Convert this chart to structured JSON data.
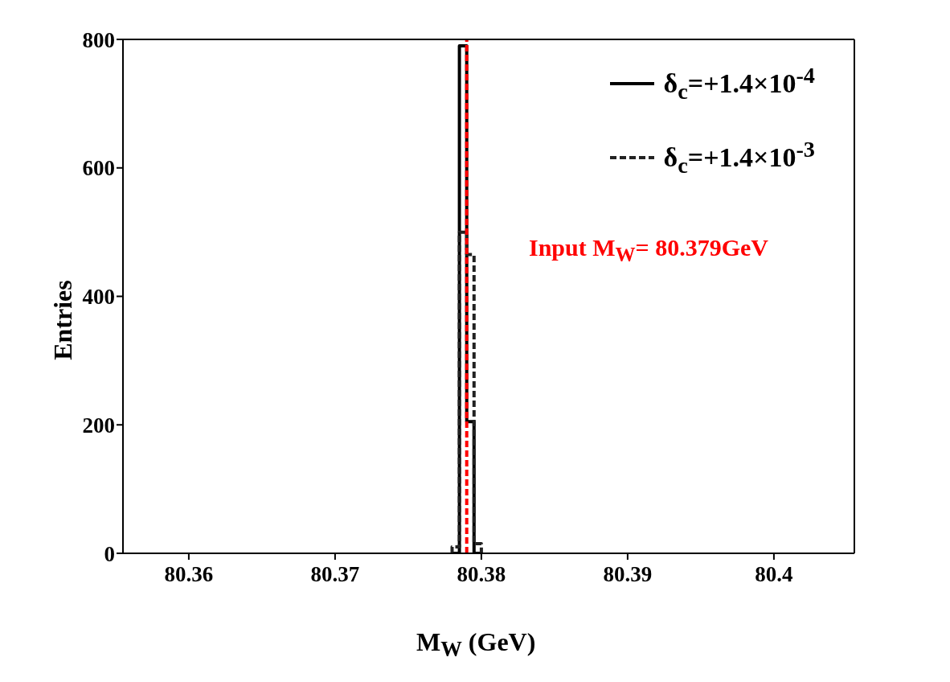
{
  "chart_data": {
    "type": "histogram",
    "xlabel": "M$_{W}$ (GeV)",
    "ylabel": "Entries",
    "xlim": [
      80.3555,
      80.4055
    ],
    "xticks": [
      80.36,
      80.37,
      80.38,
      80.39,
      80.4
    ],
    "ylim": [
      0,
      800
    ],
    "yticks": [
      0,
      200,
      400,
      600,
      800
    ],
    "bins": [
      80.378,
      80.3785,
      80.379,
      80.3795,
      80.38
    ],
    "series": [
      {
        "name": "δ$_{c}$=+1.4×10$^{-4}$",
        "color": "#000000",
        "line_style": "solid",
        "values": [
          0,
          790,
          205,
          0
        ]
      },
      {
        "name": "δ$_{c}$=+1.4×10$^{-3}$",
        "color": "#222222",
        "line_style": "dotted",
        "values": [
          10,
          500,
          465,
          15
        ]
      }
    ],
    "ref_lines": [
      {
        "axis": "x",
        "value": 80.379,
        "color": "#ff0000",
        "line_style": "dotted"
      }
    ],
    "annotations": [
      "Input M$_{W}$= 80.379GeV"
    ],
    "legend": "top right"
  }
}
